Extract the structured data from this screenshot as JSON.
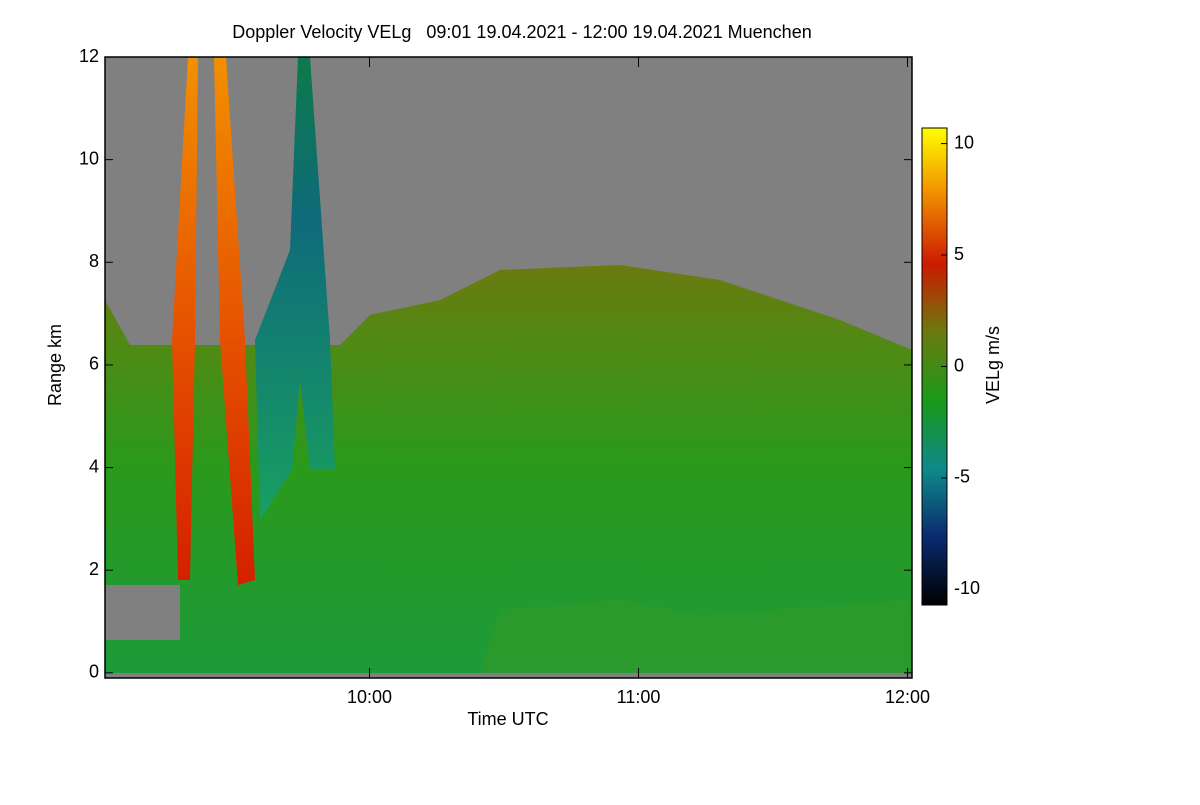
{
  "chart_data": {
    "type": "heatmap",
    "title": "Doppler Velocity VELg   09:01 19.04.2021 - 12:00 19.04.2021 Muenchen",
    "x_label": "Time UTC",
    "y_label": "Range km",
    "xlim": [
      541,
      721
    ],
    "xticks": [
      {
        "value": 600,
        "label": "10:00"
      },
      {
        "value": 660,
        "label": "11:00"
      },
      {
        "value": 720,
        "label": "12:00"
      }
    ],
    "ylim": [
      -0.1,
      12
    ],
    "yticks": [
      0,
      2,
      4,
      6,
      8,
      10,
      12
    ],
    "colorbar": {
      "label": "VELg m/s",
      "lim": [
        -10.7,
        10.7
      ],
      "ticks": [
        -10,
        -5,
        0,
        5,
        10
      ],
      "colormap": [
        "#000000",
        "#0a2a6e",
        "#0f8a8a",
        "#1a9a1a",
        "#6b7a10",
        "#cc1a00",
        "#f08a00",
        "#ffff00"
      ]
    },
    "missing_color": "#808080"
  }
}
